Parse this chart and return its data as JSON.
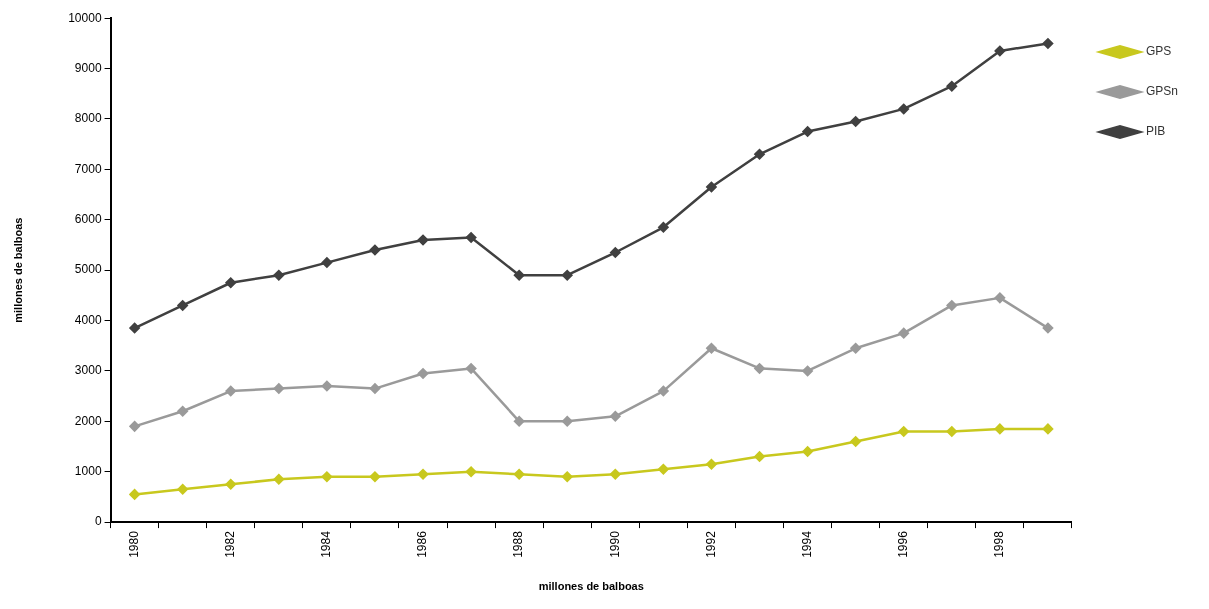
{
  "chart_data": {
    "type": "line",
    "xlabel": "millones de balboas",
    "ylabel": "millones de balboas",
    "categories": [
      "1980",
      null,
      "1982",
      null,
      "1984",
      null,
      "1986",
      null,
      "1988",
      null,
      "1990",
      null,
      "1992",
      null,
      "1994",
      null,
      "1996",
      null,
      "1998",
      null
    ],
    "series": [
      {
        "name": "GPS",
        "color": "#c8c81e",
        "values": [
          550,
          650,
          750,
          850,
          900,
          900,
          950,
          1000,
          950,
          900,
          950,
          1050,
          1150,
          1300,
          1400,
          1600,
          1800,
          1800,
          1850,
          1850
        ]
      },
      {
        "name": "GPSn",
        "color": "#9a9a9a",
        "values": [
          1900,
          2200,
          2600,
          2650,
          2700,
          2650,
          2950,
          3050,
          2000,
          2000,
          2100,
          2600,
          3450,
          3050,
          3000,
          3450,
          3750,
          4300,
          4450,
          3850
        ]
      },
      {
        "name": "PIB",
        "color": "#404040",
        "values": [
          3850,
          4300,
          4750,
          4900,
          5150,
          5400,
          5600,
          5650,
          4900,
          4900,
          5350,
          5850,
          6650,
          7300,
          7750,
          7950,
          8200,
          8650,
          9350,
          9500
        ]
      }
    ],
    "ylim": [
      0,
      10000
    ],
    "yticks": [
      0,
      1000,
      2000,
      3000,
      4000,
      5000,
      6000,
      7000,
      8000,
      9000,
      10000
    ],
    "grid": false,
    "legend": "top right",
    "marker": "diamond",
    "line_style": "solid"
  }
}
